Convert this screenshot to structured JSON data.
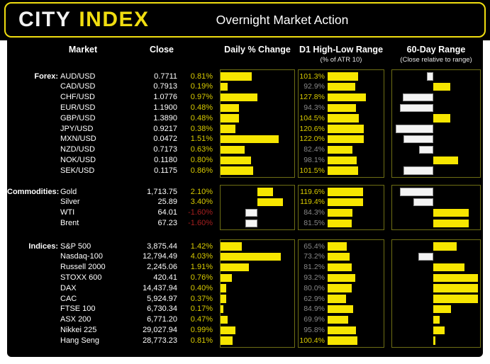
{
  "header": {
    "brand_primary": "CITY",
    "brand_accent": "INDEX",
    "title": "Overnight Market Action"
  },
  "table_headers": {
    "market": "Market",
    "close": "Close",
    "daily_change": "Daily % Change",
    "d1_range": "D1 High-Low Range",
    "d1_range_sub": "(% of ATR 10)",
    "range_60d": "60-Day Range",
    "range_60d_sub": "(Close relative to range)"
  },
  "colors": {
    "accent_yellow": "#f0dd10",
    "bar_yellow": "#f7e600",
    "bar_white": "#f4f4f4",
    "positive_text": "#d9cb00",
    "negative_text": "#a51f1f",
    "muted_text": "#888888",
    "box_border": "#6e6e14",
    "panel_bg": "#000000"
  },
  "chart_data": {
    "type": "table",
    "title": "Overnight Market Action",
    "columns": [
      "Market",
      "Close",
      "Daily % Change",
      "D1 High-Low Range (% of ATR 10)",
      "60-Day Range (Close relative to range)"
    ],
    "notes": "Daily % bars: yellow = positive, white = negative. D1 range bars sized to % of ATR10 (yellow label when >= 100%). 60-day bars: white extends left when close is below range midpoint, yellow extends right when above; position estimated from bar length.",
    "groups": [
      {
        "name": "Forex:",
        "rows": [
          {
            "market": "AUD/USD",
            "close": "0.7711",
            "daily_pct": 0.81,
            "daily_label": "0.81%",
            "d1_pct": 101.3,
            "d1_label": "101.3%",
            "pos_60d_pct": 43
          },
          {
            "market": "CAD/USD",
            "close": "0.7913",
            "daily_pct": 0.19,
            "daily_label": "0.19%",
            "d1_pct": 92.9,
            "d1_label": "92.9%",
            "pos_60d_pct": 69
          },
          {
            "market": "CHF/USD",
            "close": "1.0776",
            "daily_pct": 0.97,
            "daily_label": "0.97%",
            "d1_pct": 127.8,
            "d1_label": "127.8%",
            "pos_60d_pct": 16
          },
          {
            "market": "EUR/USD",
            "close": "1.1900",
            "daily_pct": 0.48,
            "daily_label": "0.48%",
            "d1_pct": 94.3,
            "d1_label": "94.3%",
            "pos_60d_pct": 13
          },
          {
            "market": "GBP/USD",
            "close": "1.3890",
            "daily_pct": 0.48,
            "daily_label": "0.48%",
            "d1_pct": 104.5,
            "d1_label": "104.5%",
            "pos_60d_pct": 69
          },
          {
            "market": "JPY/USD",
            "close": "0.9217",
            "daily_pct": 0.38,
            "daily_label": "0.38%",
            "d1_pct": 120.6,
            "d1_label": "120.6%",
            "pos_60d_pct": 8
          },
          {
            "market": "MXN/USD",
            "close": "0.0472",
            "daily_pct": 1.51,
            "daily_label": "1.51%",
            "d1_pct": 122.0,
            "d1_label": "122.0%",
            "pos_60d_pct": 17
          },
          {
            "market": "NZD/USD",
            "close": "0.7173",
            "daily_pct": 0.63,
            "daily_label": "0.63%",
            "d1_pct": 82.4,
            "d1_label": "82.4%",
            "pos_60d_pct": 34
          },
          {
            "market": "NOK/USD",
            "close": "0.1180",
            "daily_pct": 0.8,
            "daily_label": "0.80%",
            "d1_pct": 98.1,
            "d1_label": "98.1%",
            "pos_60d_pct": 78
          },
          {
            "market": "SEK/USD",
            "close": "0.1175",
            "daily_pct": 0.86,
            "daily_label": "0.86%",
            "d1_pct": 101.5,
            "d1_label": "101.5%",
            "pos_60d_pct": 17
          }
        ]
      },
      {
        "name": "Commodities:",
        "rows": [
          {
            "market": "Gold",
            "close": "1,713.75",
            "daily_pct": 2.1,
            "daily_label": "2.10%",
            "d1_pct": 119.6,
            "d1_label": "119.6%",
            "pos_60d_pct": 13
          },
          {
            "market": "Silver",
            "close": "25.89",
            "daily_pct": 3.4,
            "daily_label": "3.40%",
            "d1_pct": 119.4,
            "d1_label": "119.4%",
            "pos_60d_pct": 28
          },
          {
            "market": "WTI",
            "close": "64.01",
            "daily_pct": -1.6,
            "daily_label": "-1.60%",
            "d1_pct": 84.3,
            "d1_label": "84.3%",
            "pos_60d_pct": 90
          },
          {
            "market": "Brent",
            "close": "67.23",
            "daily_pct": -1.6,
            "daily_label": "-1.60%",
            "d1_pct": 81.5,
            "d1_label": "81.5%",
            "pos_60d_pct": 90
          }
        ]
      },
      {
        "name": "Indices:",
        "rows": [
          {
            "market": "S&P 500",
            "close": "3,875.44",
            "daily_pct": 1.42,
            "daily_label": "1.42%",
            "d1_pct": 65.4,
            "d1_label": "65.4%",
            "pos_60d_pct": 76
          },
          {
            "market": "Nasdaq-100",
            "close": "12,794.49",
            "daily_pct": 4.03,
            "daily_label": "4.03%",
            "d1_pct": 73.2,
            "d1_label": "73.2%",
            "pos_60d_pct": 33
          },
          {
            "market": "Russell 2000",
            "close": "2,245.06",
            "daily_pct": 1.91,
            "daily_label": "1.91%",
            "d1_pct": 81.2,
            "d1_label": "81.2%",
            "pos_60d_pct": 85
          },
          {
            "market": "STOXX 600",
            "close": "420.41",
            "daily_pct": 0.76,
            "daily_label": "0.76%",
            "d1_pct": 93.2,
            "d1_label": "93.2%",
            "pos_60d_pct": 100
          },
          {
            "market": "DAX",
            "close": "14,437.94",
            "daily_pct": 0.4,
            "daily_label": "0.40%",
            "d1_pct": 80.0,
            "d1_label": "80.0%",
            "pos_60d_pct": 100
          },
          {
            "market": "CAC",
            "close": "5,924.97",
            "daily_pct": 0.37,
            "daily_label": "0.37%",
            "d1_pct": 62.9,
            "d1_label": "62.9%",
            "pos_60d_pct": 100
          },
          {
            "market": "FTSE 100",
            "close": "6,730.34",
            "daily_pct": 0.17,
            "daily_label": "0.17%",
            "d1_pct": 84.9,
            "d1_label": "84.9%",
            "pos_60d_pct": 70
          },
          {
            "market": "ASX 200",
            "close": "6,771.20",
            "daily_pct": 0.47,
            "daily_label": "0.47%",
            "d1_pct": 69.9,
            "d1_label": "69.9%",
            "pos_60d_pct": 57
          },
          {
            "market": "Nikkei 225",
            "close": "29,027.94",
            "daily_pct": 0.99,
            "daily_label": "0.99%",
            "d1_pct": 95.8,
            "d1_label": "95.8%",
            "pos_60d_pct": 63
          },
          {
            "market": "Hang Seng",
            "close": "28,773.23",
            "daily_pct": 0.81,
            "daily_label": "0.81%",
            "d1_pct": 100.4,
            "d1_label": "100.4%",
            "pos_60d_pct": 52
          }
        ]
      }
    ]
  }
}
